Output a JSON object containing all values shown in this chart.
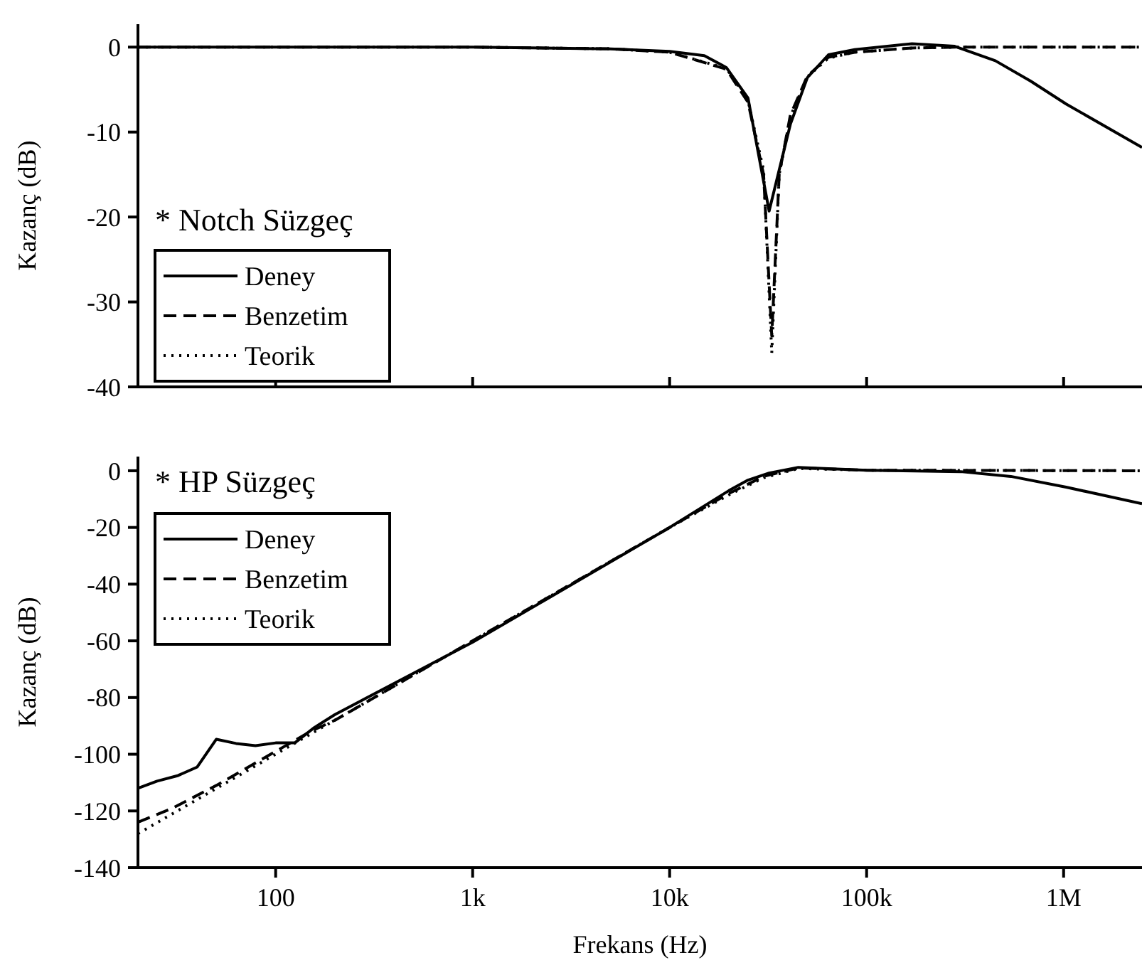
{
  "chart_data": [
    {
      "type": "line",
      "title": "* Notch Süzgeç",
      "ylabel": "Kazanç (dB)",
      "log": "x",
      "xlim": [
        20,
        2500000
      ],
      "ylim": [
        -40,
        2.7
      ],
      "xticks": [
        {
          "value": 100,
          "label": null
        },
        {
          "value": 1000,
          "label": null
        },
        {
          "value": 10000,
          "label": null
        },
        {
          "value": 100000,
          "label": null
        },
        {
          "value": 1000000,
          "label": null
        }
      ],
      "yticks": [
        0,
        -10,
        -20,
        -30,
        -40
      ],
      "tick_labels": "y",
      "legend": "bottom left",
      "grid": false,
      "series": [
        {
          "name": "Deney",
          "color": "#000000",
          "line_style": "solid",
          "x": [
            20,
            1000,
            5000,
            10000,
            15000,
            19400,
            25000,
            32000,
            41000,
            50000,
            64000,
            87000,
            170000,
            280000,
            450000,
            680000,
            1030000,
            2500000
          ],
          "values": [
            0,
            0,
            -0.2,
            -0.5,
            -1.0,
            -2.4,
            -6,
            -19.3,
            -9.1,
            -3.6,
            -0.9,
            -0.3,
            0.4,
            0.1,
            -1.6,
            -4.0,
            -6.7,
            -11.8
          ]
        },
        {
          "name": "Benzetim",
          "color": "#000000",
          "line_style": "dashed",
          "x": [
            20,
            1000,
            5000,
            10000,
            19400,
            25000,
            30000,
            33000,
            36000,
            41000,
            50000,
            64000,
            87000,
            170000,
            300000,
            2500000
          ],
          "values": [
            0,
            0,
            -0.2,
            -0.6,
            -2.6,
            -6.5,
            -15,
            -34,
            -15,
            -8,
            -3.4,
            -1.2,
            -0.6,
            -0.1,
            0,
            0
          ]
        },
        {
          "name": "Teorik",
          "color": "#000000",
          "line_style": "dotted",
          "x": [
            20,
            1000,
            5000,
            10000,
            19400,
            25000,
            30000,
            33000,
            36000,
            41000,
            50000,
            64000,
            87000,
            170000,
            300000,
            2500000
          ],
          "values": [
            0,
            0,
            -0.2,
            -0.6,
            -2.5,
            -6.3,
            -14.5,
            -36,
            -15,
            -8.2,
            -3.5,
            -1.3,
            -0.6,
            -0.1,
            0,
            0
          ]
        }
      ]
    },
    {
      "type": "line",
      "title": "* HP Süzgeç",
      "xlabel": "Frekans (Hz)",
      "ylabel": "Kazanç (dB)",
      "log": "x",
      "xlim": [
        20,
        2500000
      ],
      "ylim": [
        -140,
        5
      ],
      "xticks": [
        {
          "value": 100,
          "label": "100"
        },
        {
          "value": 1000,
          "label": "1k"
        },
        {
          "value": 10000,
          "label": "10k"
        },
        {
          "value": 100000,
          "label": "100k"
        },
        {
          "value": 1000000,
          "label": "1M"
        }
      ],
      "yticks": [
        0,
        -20,
        -40,
        -60,
        -80,
        -100,
        -120,
        -140
      ],
      "legend": "top left",
      "grid": false,
      "series": [
        {
          "name": "Deney",
          "color": "#000000",
          "line_style": "solid",
          "x": [
            20,
            25,
            32,
            40,
            50,
            63,
            79,
            100,
            125,
            157,
            200,
            1000,
            10000,
            20000,
            25000,
            32000,
            45000,
            100000,
            300000,
            540000,
            1030000,
            2500000
          ],
          "values": [
            -112,
            -109.5,
            -107.5,
            -104.5,
            -94.7,
            -96.2,
            -97,
            -96,
            -96,
            -90.6,
            -86,
            -60.5,
            -20,
            -7,
            -3.3,
            -0.8,
            1.2,
            0.2,
            -0.3,
            -2,
            -5.8,
            -11.6
          ]
        },
        {
          "name": "Benzetim",
          "color": "#000000",
          "line_style": "dashed",
          "x": [
            20,
            30,
            50,
            100,
            150,
            200,
            1000,
            10000,
            20000,
            30000,
            45000,
            100000,
            2500000
          ],
          "values": [
            -124,
            -119,
            -111,
            -99,
            -92,
            -88,
            -60,
            -20,
            -8,
            -2,
            1,
            0.2,
            0
          ]
        },
        {
          "name": "Teorik",
          "color": "#000000",
          "line_style": "dotted",
          "x": [
            20,
            100,
            1000,
            10000,
            20000,
            30000,
            45000,
            100000,
            2500000
          ],
          "values": [
            -128,
            -100,
            -60,
            -20,
            -8.5,
            -2.5,
            0.8,
            0.2,
            0
          ]
        }
      ]
    }
  ]
}
